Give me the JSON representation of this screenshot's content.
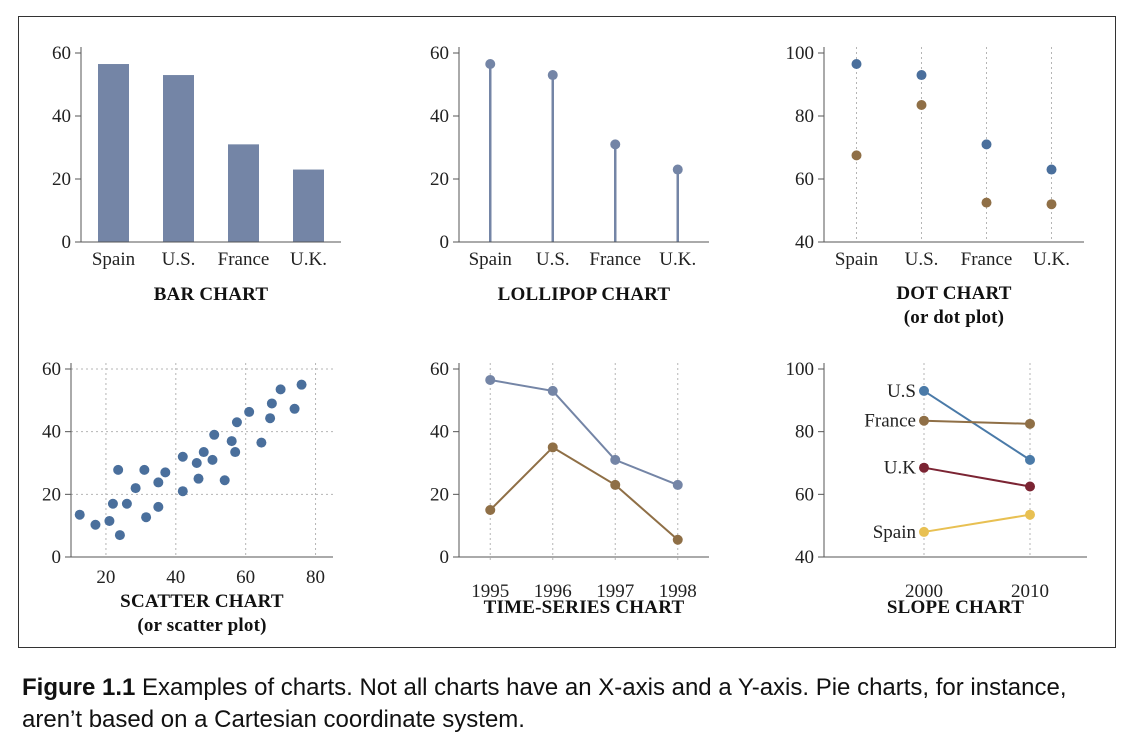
{
  "caption": {
    "figure_label": "Figure 1.1",
    "text": "Examples of charts. Not all charts have an X-axis and a Y-axis. Pie charts, for instance, aren’t based on a Cartesian coordinate system."
  },
  "colors": {
    "bar": "#7485a6",
    "lollipop": "#7485a6",
    "dot_a": "#4a6f9c",
    "dot_b": "#8f6f46",
    "scatter": "#4a6f9c",
    "series_blue": "#7485a6",
    "series_brown": "#8f6f46",
    "slope_us": "#4a7aa8",
    "slope_france": "#8f6f46",
    "slope_uk": "#7b2433",
    "slope_spain": "#e8c052",
    "axis": "#555555",
    "grid": "#b5b5b5"
  },
  "chart_data": [
    {
      "id": "bar",
      "type": "bar",
      "title_lines": [
        "BAR CHART"
      ],
      "categories": [
        "Spain",
        "U.S.",
        "France",
        "U.K."
      ],
      "values": [
        56.5,
        53,
        31,
        23
      ],
      "ylim": [
        0,
        60
      ],
      "yticks": [
        0,
        20,
        40,
        60
      ],
      "grid": "none"
    },
    {
      "id": "lollipop",
      "type": "lollipop",
      "title_lines": [
        "LOLLIPOP CHART"
      ],
      "categories": [
        "Spain",
        "U.S.",
        "France",
        "U.K."
      ],
      "values": [
        56.5,
        53,
        31,
        23
      ],
      "ylim": [
        0,
        60
      ],
      "yticks": [
        0,
        20,
        40,
        60
      ],
      "grid": "none"
    },
    {
      "id": "dot",
      "type": "dot",
      "title_lines": [
        "DOT CHART",
        "(or dot plot)"
      ],
      "categories": [
        "Spain",
        "U.S.",
        "France",
        "U.K."
      ],
      "series": [
        {
          "values": [
            96.5,
            93,
            71,
            63
          ]
        },
        {
          "values": [
            67.5,
            83.5,
            52.5,
            52
          ]
        }
      ],
      "ylim": [
        40,
        100
      ],
      "yticks": [
        40,
        60,
        80,
        100
      ],
      "grid": "x-dotted"
    },
    {
      "id": "scatter",
      "type": "scatter",
      "title_lines": [
        "SCATTER CHART",
        "(or scatter plot)"
      ],
      "points": [
        [
          12.5,
          13.5
        ],
        [
          17,
          10.3
        ],
        [
          21,
          11.5
        ],
        [
          22,
          17
        ],
        [
          23.5,
          27.8
        ],
        [
          24,
          7
        ],
        [
          26,
          17
        ],
        [
          28.5,
          22
        ],
        [
          31,
          27.8
        ],
        [
          31.5,
          12.7
        ],
        [
          35,
          16
        ],
        [
          35,
          23.8
        ],
        [
          37,
          27
        ],
        [
          42,
          21
        ],
        [
          42,
          32
        ],
        [
          46,
          30
        ],
        [
          46.5,
          25
        ],
        [
          48,
          33.5
        ],
        [
          50.5,
          31
        ],
        [
          51,
          39
        ],
        [
          54,
          24.5
        ],
        [
          56,
          37
        ],
        [
          57,
          33.5
        ],
        [
          57.5,
          43
        ],
        [
          61,
          46.3
        ],
        [
          64.5,
          36.5
        ],
        [
          67,
          44.3
        ],
        [
          67.5,
          49
        ],
        [
          70,
          53.5
        ],
        [
          74,
          47.3
        ],
        [
          76,
          55
        ]
      ],
      "xlim": [
        10,
        85
      ],
      "ylim": [
        0,
        60
      ],
      "xticks": [
        20,
        40,
        60,
        80
      ],
      "yticks": [
        0,
        20,
        40,
        60
      ],
      "grid": "both-dotted"
    },
    {
      "id": "timeseries",
      "type": "line",
      "title_lines": [
        "TIME-SERIES CHART"
      ],
      "x": [
        "1995",
        "1996",
        "1997",
        "1998"
      ],
      "series": [
        {
          "values": [
            56.5,
            53,
            31,
            23
          ]
        },
        {
          "values": [
            15,
            35,
            23,
            5.5
          ]
        }
      ],
      "ylim": [
        0,
        60
      ],
      "yticks": [
        0,
        20,
        40,
        60
      ],
      "grid": "x-dotted"
    },
    {
      "id": "slope",
      "type": "slope",
      "title_lines": [
        "SLOPE CHART"
      ],
      "x": [
        "2000",
        "2010"
      ],
      "series": [
        {
          "name": "U.S",
          "values": [
            93,
            71
          ]
        },
        {
          "name": "France",
          "values": [
            83.5,
            82.5
          ]
        },
        {
          "name": "U.K",
          "values": [
            68.5,
            62.5
          ]
        },
        {
          "name": "Spain",
          "values": [
            48,
            53.5
          ]
        }
      ],
      "ylim": [
        40,
        100
      ],
      "yticks": [
        40,
        60,
        80,
        100
      ],
      "grid": "x-dotted"
    }
  ]
}
